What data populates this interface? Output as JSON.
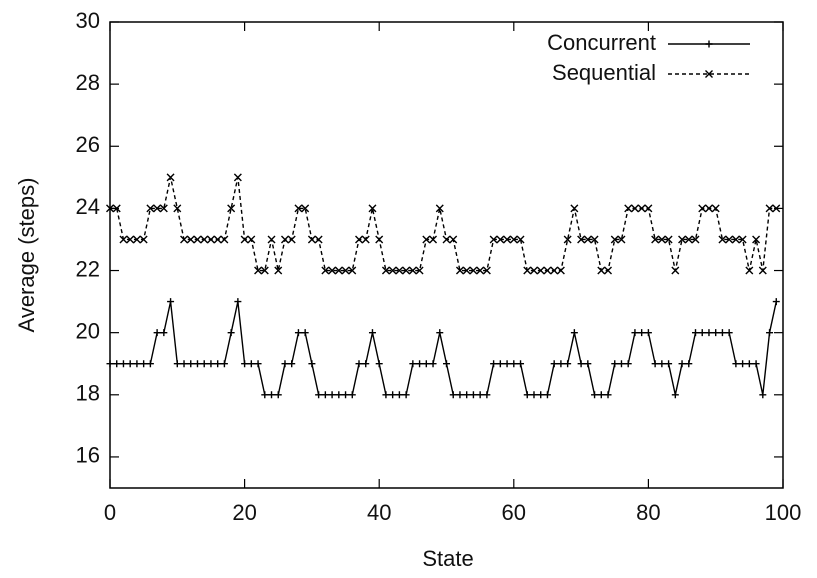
{
  "chart_data": {
    "type": "line",
    "xlabel": "State",
    "ylabel": "Average (steps)",
    "xlim": [
      0,
      100
    ],
    "ylim": [
      15,
      30
    ],
    "xticks": [
      0,
      20,
      40,
      60,
      80,
      100
    ],
    "yticks": [
      16,
      18,
      20,
      22,
      24,
      26,
      28,
      30
    ],
    "legend": "top-right",
    "x": [
      0,
      1,
      2,
      3,
      4,
      5,
      6,
      7,
      8,
      9,
      10,
      11,
      12,
      13,
      14,
      15,
      16,
      17,
      18,
      19,
      20,
      21,
      22,
      23,
      24,
      25,
      26,
      27,
      28,
      29,
      30,
      31,
      32,
      33,
      34,
      35,
      36,
      37,
      38,
      39,
      40,
      41,
      42,
      43,
      44,
      45,
      46,
      47,
      48,
      49,
      50,
      51,
      52,
      53,
      54,
      55,
      56,
      57,
      58,
      59,
      60,
      61,
      62,
      63,
      64,
      65,
      66,
      67,
      68,
      69,
      70,
      71,
      72,
      73,
      74,
      75,
      76,
      77,
      78,
      79,
      80,
      81,
      82,
      83,
      84,
      85,
      86,
      87,
      88,
      89,
      90,
      91,
      92,
      93,
      94,
      95,
      96,
      97,
      98,
      99
    ],
    "series": [
      {
        "name": "Concurrent",
        "color": "#000000",
        "line_style": "solid",
        "marker": "plus",
        "values": [
          19,
          19,
          19,
          19,
          19,
          19,
          19,
          20,
          20,
          21,
          19,
          19,
          19,
          19,
          19,
          19,
          19,
          19,
          20,
          21,
          19,
          19,
          19,
          18,
          18,
          18,
          19,
          19,
          20,
          20,
          19,
          18,
          18,
          18,
          18,
          18,
          18,
          19,
          19,
          20,
          19,
          18,
          18,
          18,
          18,
          19,
          19,
          19,
          19,
          20,
          19,
          18,
          18,
          18,
          18,
          18,
          18,
          19,
          19,
          19,
          19,
          19,
          18,
          18,
          18,
          18,
          19,
          19,
          19,
          20,
          19,
          19,
          18,
          18,
          18,
          19,
          19,
          19,
          20,
          20,
          20,
          19,
          19,
          19,
          18,
          19,
          19,
          20,
          20,
          20,
          20,
          20,
          20,
          19,
          19,
          19,
          19,
          18,
          20,
          21
        ]
      },
      {
        "name": "Sequential",
        "color": "#000000",
        "line_style": "dashed",
        "marker": "cross",
        "values": [
          24,
          24,
          23,
          23,
          23,
          23,
          24,
          24,
          24,
          25,
          24,
          23,
          23,
          23,
          23,
          23,
          23,
          23,
          24,
          25,
          23,
          23,
          22,
          22,
          23,
          22,
          23,
          23,
          24,
          24,
          23,
          23,
          22,
          22,
          22,
          22,
          22,
          23,
          23,
          24,
          23,
          22,
          22,
          22,
          22,
          22,
          22,
          23,
          23,
          24,
          23,
          23,
          22,
          22,
          22,
          22,
          22,
          23,
          23,
          23,
          23,
          23,
          22,
          22,
          22,
          22,
          22,
          22,
          23,
          24,
          23,
          23,
          23,
          22,
          22,
          23,
          23,
          24,
          24,
          24,
          24,
          23,
          23,
          23,
          22,
          23,
          23,
          23,
          24,
          24,
          24,
          23,
          23,
          23,
          23,
          22,
          23,
          22,
          24,
          24
        ]
      }
    ]
  }
}
